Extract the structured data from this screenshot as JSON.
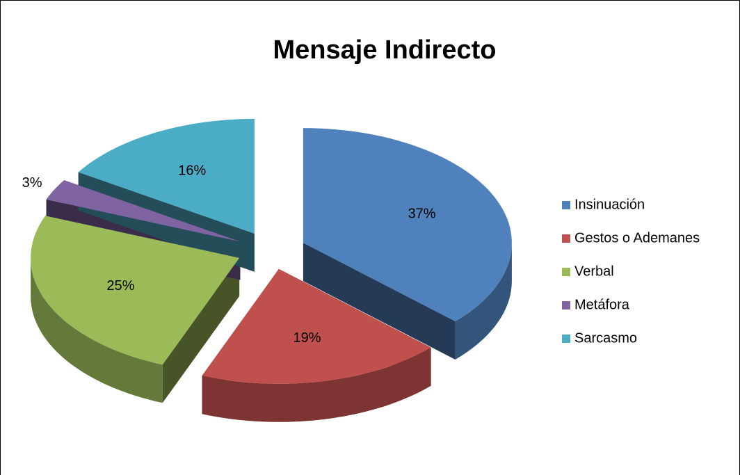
{
  "chart_data": {
    "type": "pie",
    "title": "Mensaje Indirecto",
    "categories": [
      "Insinuación",
      "Gestos o Ademanes",
      "Verbal",
      "Metáfora",
      "Sarcasmo"
    ],
    "values": [
      37,
      19,
      25,
      3,
      16
    ],
    "value_labels": [
      "37%",
      "19%",
      "25%",
      "3%",
      "16%"
    ],
    "colors": [
      "#4f81bd",
      "#c0504d",
      "#9bbb59",
      "#8064a2",
      "#4bacc6"
    ],
    "legend": "right"
  }
}
